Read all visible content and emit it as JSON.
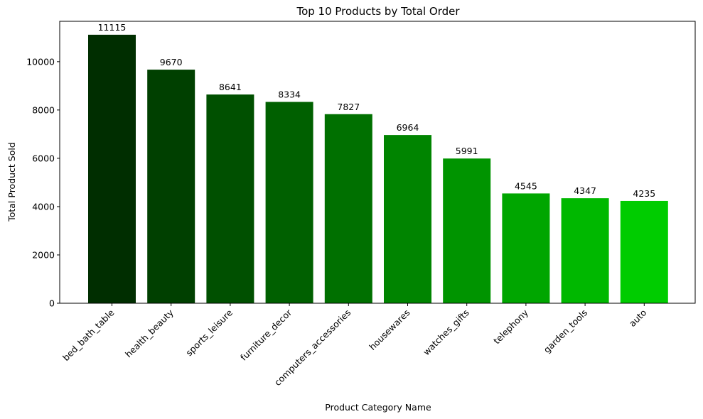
{
  "chart_data": {
    "type": "bar",
    "title": "Top 10 Products by Total Order",
    "xlabel": "Product Category Name",
    "ylabel": "Total Product Sold",
    "categories": [
      "bed_bath_table",
      "health_beauty",
      "sports_leisure",
      "furniture_decor",
      "computers_accessories",
      "housewares",
      "watches_gifts",
      "telephony",
      "garden_tools",
      "auto"
    ],
    "values": [
      11115,
      9670,
      8641,
      8334,
      7827,
      6964,
      5991,
      4545,
      4347,
      4235
    ],
    "data_labels": [
      "11115",
      "9670",
      "8641",
      "8334",
      "7827",
      "6964",
      "5991",
      "4545",
      "4347",
      "4235"
    ],
    "ylim": [
      0,
      11671
    ],
    "yticks": [
      0,
      2000,
      4000,
      6000,
      8000,
      10000
    ],
    "ytick_labels": [
      "0",
      "2000",
      "4000",
      "6000",
      "8000",
      "10000"
    ],
    "colors": [
      "#002e00",
      "#004000",
      "#005000",
      "#006000",
      "#007000",
      "#008400",
      "#009400",
      "#00a600",
      "#00b800",
      "#00cc00"
    ],
    "grid": false,
    "legend": "none"
  }
}
